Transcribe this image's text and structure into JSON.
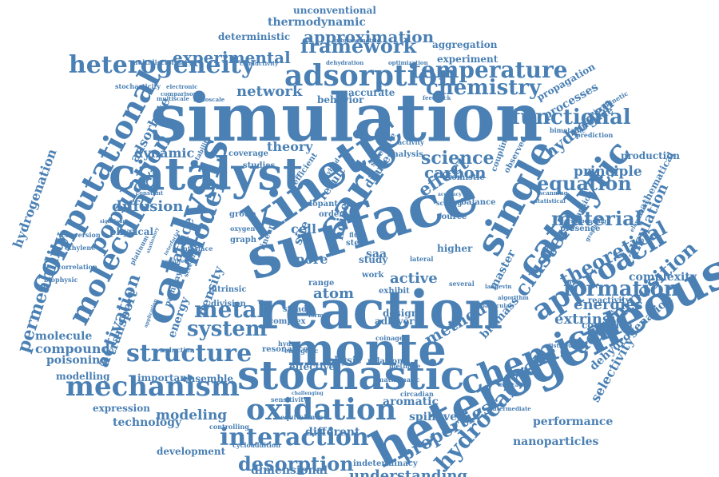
{
  "word_color": "#4a80b4",
  "background": "#ffffff",
  "words": [
    {
      "text": "simulation"
    },
    {
      "text": "heterogeneous"
    },
    {
      "text": "surface"
    },
    {
      "text": "reaction"
    },
    {
      "text": "monte"
    },
    {
      "text": "kinetic"
    },
    {
      "text": "catalyst"
    },
    {
      "text": "stochastic"
    },
    {
      "text": "catalysis"
    },
    {
      "text": "carlo"
    },
    {
      "text": "single"
    },
    {
      "text": "catalytic"
    },
    {
      "text": "chemical"
    },
    {
      "text": "oxidation"
    },
    {
      "text": "mechanism"
    },
    {
      "text": "computational"
    },
    {
      "text": "molecular"
    },
    {
      "text": "approach"
    },
    {
      "text": "hydrocarbon"
    },
    {
      "text": "structure"
    },
    {
      "text": "heterogeneity"
    },
    {
      "text": "adsorption"
    },
    {
      "text": "population"
    },
    {
      "text": "model"
    },
    {
      "text": "interaction"
    },
    {
      "text": "temperature"
    },
    {
      "text": "framework"
    },
    {
      "text": "chemistry"
    },
    {
      "text": "functional"
    },
    {
      "text": "desorption"
    },
    {
      "text": "system"
    },
    {
      "text": "metal"
    },
    {
      "text": "cluster"
    },
    {
      "text": "theoretical"
    },
    {
      "text": "formation"
    },
    {
      "text": "material"
    },
    {
      "text": "equation"
    },
    {
      "text": "decomposition"
    },
    {
      "text": "properties"
    },
    {
      "text": "activation"
    },
    {
      "text": "permeability"
    },
    {
      "text": "hydrogenation"
    },
    {
      "text": "understanding"
    },
    {
      "text": "experimental"
    },
    {
      "text": "approximation"
    },
    {
      "text": "network"
    },
    {
      "text": "carbon"
    },
    {
      "text": "science"
    },
    {
      "text": "effect"
    },
    {
      "text": "method"
    },
    {
      "text": "hydrogen"
    },
    {
      "text": "principle"
    },
    {
      "text": "calculation"
    },
    {
      "text": "extrinsic"
    },
    {
      "text": "energies"
    },
    {
      "text": "modeling"
    },
    {
      "text": "dimensional"
    },
    {
      "text": "atom"
    },
    {
      "text": "active"
    },
    {
      "text": "dehydrogenation"
    },
    {
      "text": "selectivity"
    },
    {
      "text": "diffusion"
    },
    {
      "text": "transport"
    },
    {
      "text": "adsorbate"
    },
    {
      "text": "theory"
    },
    {
      "text": "dynamic"
    },
    {
      "text": "cell"
    },
    {
      "text": "noise"
    },
    {
      "text": "site"
    },
    {
      "text": "pore"
    },
    {
      "text": "lattice"
    },
    {
      "text": "density"
    },
    {
      "text": "energy"
    },
    {
      "text": "compound"
    },
    {
      "text": "molecule"
    },
    {
      "text": "poisoning"
    },
    {
      "text": "modelling"
    },
    {
      "text": "expression"
    },
    {
      "text": "technology"
    },
    {
      "text": "development"
    },
    {
      "text": "ensemble"
    },
    {
      "text": "important"
    },
    {
      "text": "nanoparticles"
    },
    {
      "text": "performance"
    },
    {
      "text": "mathematical"
    },
    {
      "text": "complexity"
    },
    {
      "text": "production"
    },
    {
      "text": "reactivity"
    },
    {
      "text": "condition"
    },
    {
      "text": "biomass"
    },
    {
      "text": "master"
    },
    {
      "text": "aromatic"
    },
    {
      "text": "spillover"
    },
    {
      "text": "different"
    },
    {
      "text": "effective"
    },
    {
      "text": "physic"
    },
    {
      "text": "relation"
    },
    {
      "text": "behavior"
    },
    {
      "text": "accurate"
    },
    {
      "text": "processes"
    },
    {
      "text": "propagation"
    },
    {
      "text": "monoxide"
    },
    {
      "text": "thermodynamic"
    },
    {
      "text": "unconventional"
    },
    {
      "text": "deterministic"
    },
    {
      "text": "aggregation"
    },
    {
      "text": "experiment"
    },
    {
      "text": "multidisciplinary"
    },
    {
      "text": "conductivity"
    },
    {
      "text": "dehydration"
    },
    {
      "text": "optimization"
    },
    {
      "text": "subnanometric"
    },
    {
      "text": "stochasticity"
    },
    {
      "text": "electronic"
    },
    {
      "text": "comparison"
    },
    {
      "text": "multiscale"
    },
    {
      "text": "nanoscale"
    },
    {
      "text": "feedback"
    },
    {
      "text": "microkinetic"
    },
    {
      "text": "bimetallic"
    },
    {
      "text": "prediction"
    },
    {
      "text": "stability"
    },
    {
      "text": "coverage"
    },
    {
      "text": "studies"
    },
    {
      "text": "physical"
    },
    {
      "text": "significant"
    },
    {
      "text": "conversion"
    },
    {
      "text": "ethylene"
    },
    {
      "text": "correlation"
    },
    {
      "text": "biophysic"
    },
    {
      "text": "platinum"
    },
    {
      "text": "interface"
    },
    {
      "text": "interfacial"
    },
    {
      "text": "group"
    },
    {
      "text": "oxygen"
    },
    {
      "text": "graph"
    },
    {
      "text": "linear"
    },
    {
      "text": "intrinsic"
    },
    {
      "text": "division"
    },
    {
      "text": "pathway"
    },
    {
      "text": "screening"
    },
    {
      "text": "resonance"
    },
    {
      "text": "reduction"
    },
    {
      "text": "coinage"
    },
    {
      "text": "methane"
    },
    {
      "text": "mathematic"
    },
    {
      "text": "indeterminacy"
    },
    {
      "text": "circadian"
    },
    {
      "text": "cycloaddition"
    },
    {
      "text": "controlling"
    },
    {
      "text": "equivalence"
    },
    {
      "text": "sensitivity"
    },
    {
      "text": "challenging"
    },
    {
      "text": "distributed"
    },
    {
      "text": "duplication"
    },
    {
      "text": "intermediate"
    },
    {
      "text": "particular"
    },
    {
      "text": "algorithm"
    },
    {
      "text": "langevin"
    },
    {
      "text": "scaling"
    },
    {
      "text": "accuracy"
    },
    {
      "text": "atomistic"
    },
    {
      "text": "analysis"
    },
    {
      "text": "activity"
    },
    {
      "text": "coupling"
    },
    {
      "text": "observed"
    },
    {
      "text": "elementary"
    },
    {
      "text": "corresponding"
    },
    {
      "text": "graphene"
    },
    {
      "text": "expansion"
    },
    {
      "text": "presence"
    },
    {
      "text": "statistical"
    },
    {
      "text": "scanning"
    },
    {
      "text": "balance"
    },
    {
      "text": "source"
    },
    {
      "text": "higher"
    },
    {
      "text": "lateral"
    },
    {
      "text": "several"
    },
    {
      "text": "design"
    },
    {
      "text": "adlayer"
    },
    {
      "text": "exhibit"
    },
    {
      "text": "work"
    },
    {
      "text": "study"
    },
    {
      "text": "range"
    },
    {
      "text": "step"
    },
    {
      "text": "fluid"
    },
    {
      "text": "saa"
    },
    {
      "text": "order"
    },
    {
      "text": "dopant"
    },
    {
      "text": "efficient"
    },
    {
      "text": "hybrid"
    },
    {
      "text": "result"
    },
    {
      "text": "dilute"
    },
    {
      "text": "selective"
    },
    {
      "text": "steady"
    },
    {
      "text": "complex"
    },
    {
      "text": "hydrate"
    },
    {
      "text": "energetic"
    },
    {
      "text": "formic"
    },
    {
      "text": "constant"
    },
    {
      "text": "negative"
    },
    {
      "text": "application"
    },
    {
      "text": "stationary"
    }
  ]
}
